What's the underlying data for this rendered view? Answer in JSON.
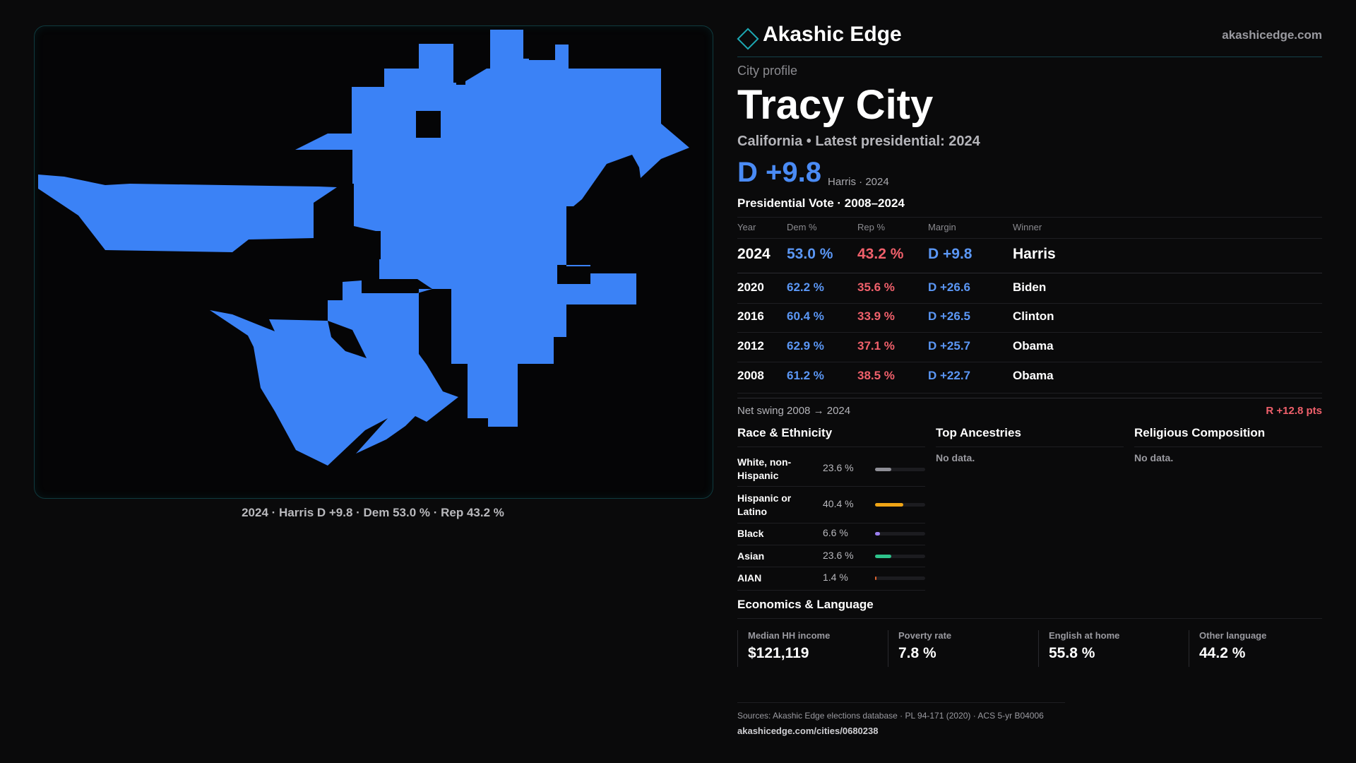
{
  "map": {
    "fill_color": "#3b82f6",
    "caption": "2024 · Harris D +9.8 · Dem 53.0 % · Rep 43.2 %"
  },
  "header": {
    "brand": "Akashic Edge",
    "url": "akashicedge.com",
    "kicker": "City profile",
    "city": "Tracy City",
    "subtitle": "California • Latest presidential: 2024",
    "margin": "D +9.8",
    "margin_note": "Harris · 2024"
  },
  "vote": {
    "title": "Presidential Vote · 2008–2024",
    "columns": [
      "Year",
      "Dem %",
      "Rep %",
      "Margin",
      "Winner"
    ],
    "rows": [
      {
        "year": "2024",
        "dem": "53.0 %",
        "rep": "43.2 %",
        "margin": "D +9.8",
        "winner": "Harris"
      },
      {
        "year": "2020",
        "dem": "62.2 %",
        "rep": "35.6 %",
        "margin": "D +26.6",
        "winner": "Biden"
      },
      {
        "year": "2016",
        "dem": "60.4 %",
        "rep": "33.9 %",
        "margin": "D +26.5",
        "winner": "Clinton"
      },
      {
        "year": "2012",
        "dem": "62.9 %",
        "rep": "37.1 %",
        "margin": "D +25.7",
        "winner": "Obama"
      },
      {
        "year": "2008",
        "dem": "61.2 %",
        "rep": "38.5 %",
        "margin": "D +22.7",
        "winner": "Obama"
      }
    ],
    "swing_label": "Net swing 2008 → 2024",
    "swing_value": "R +12.8 pts"
  },
  "race": {
    "title": "Race & Ethnicity",
    "items": [
      {
        "label": "White, non-Hispanic",
        "value": "23.6 %",
        "pct": 23.6,
        "color": "#8e8e96"
      },
      {
        "label": "Hispanic or Latino",
        "value": "40.4 %",
        "pct": 40.4,
        "color": "#f0a515"
      },
      {
        "label": "Black",
        "value": "6.6 %",
        "pct": 6.6,
        "color": "#9b7ff0"
      },
      {
        "label": "Asian",
        "value": "23.6 %",
        "pct": 23.6,
        "color": "#2ec38b"
      },
      {
        "label": "AIAN",
        "value": "1.4 %",
        "pct": 1.4,
        "color": "#e0642f"
      }
    ]
  },
  "ancestries": {
    "title": "Top Ancestries",
    "empty": "No data."
  },
  "religion": {
    "title": "Religious Composition",
    "empty": "No data."
  },
  "econ": {
    "title": "Economics & Language",
    "items": [
      {
        "label": "Median HH income",
        "value": "$121,119"
      },
      {
        "label": "Poverty rate",
        "value": "7.8 %"
      },
      {
        "label": "English at home",
        "value": "55.8 %"
      },
      {
        "label": "Other language",
        "value": "44.2 %"
      }
    ]
  },
  "footer": {
    "sources": "Sources: Akashic Edge elections database · PL 94-171 (2020) · ACS 5-yr B04006",
    "url": "akashicedge.com/cities/0680238"
  }
}
